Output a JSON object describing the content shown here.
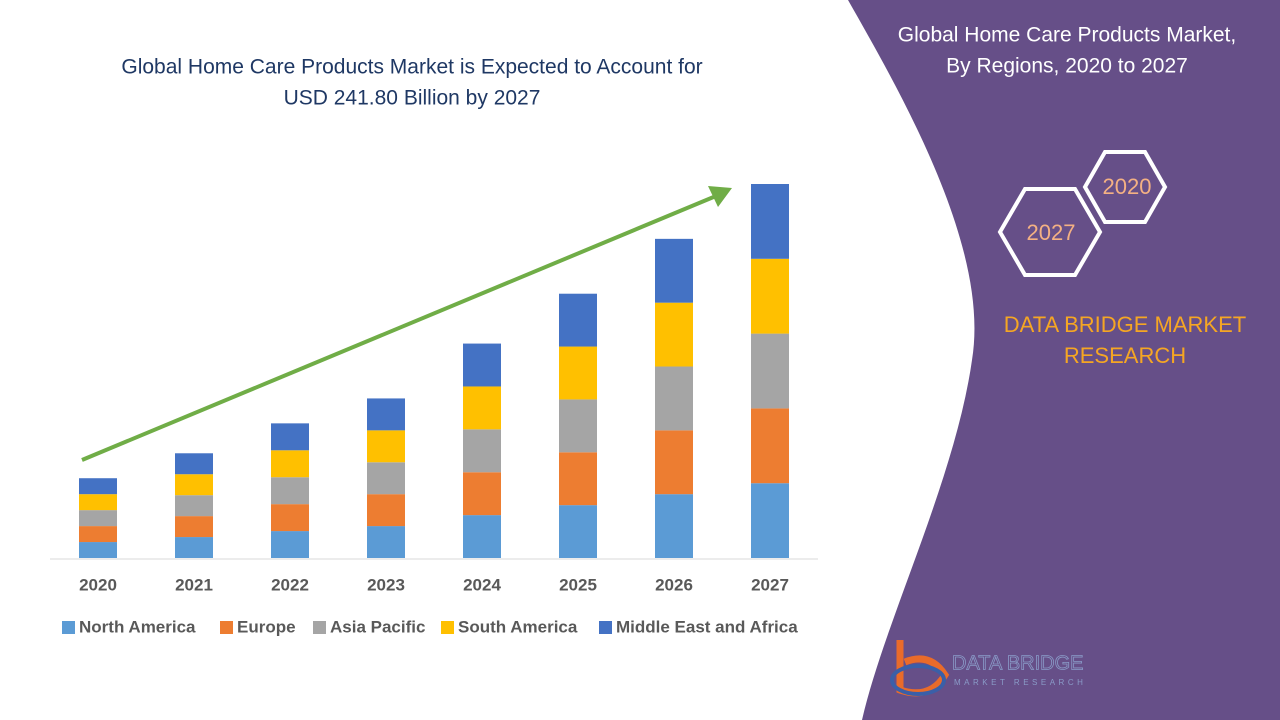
{
  "chart_data": {
    "type": "bar",
    "stacked": true,
    "title": "Global Home Care Products Market is Expected to Account  for USD 241.80 Billion by 2027",
    "title_lines": [
      "Global Home Care Products Market is Expected to Account  for",
      "USD 241.80 Billion by 2027"
    ],
    "categories": [
      "2020",
      "2021",
      "2022",
      "2023",
      "2024",
      "2025",
      "2026",
      "2027"
    ],
    "series": [
      {
        "name": "North America",
        "color": "#5b9bd5",
        "values": [
          16,
          21,
          27,
          32,
          43,
          53,
          64,
          75
        ]
      },
      {
        "name": "Europe",
        "color": "#ed7d31",
        "values": [
          16,
          21,
          27,
          32,
          43,
          53,
          64,
          75
        ]
      },
      {
        "name": "Asia Pacific",
        "color": "#a5a5a5",
        "values": [
          16,
          21,
          27,
          32,
          43,
          53,
          64,
          75
        ]
      },
      {
        "name": "South America",
        "color": "#ffc000",
        "values": [
          16,
          21,
          27,
          32,
          43,
          53,
          64,
          75
        ]
      },
      {
        "name": "Middle East and Africa",
        "color": "#4472c4",
        "values": [
          16,
          21,
          27,
          32,
          43,
          53,
          64,
          75
        ]
      }
    ],
    "legend": "bottom",
    "trend_arrow_color": "#70ad47"
  },
  "panel": {
    "title_lines": [
      "Global Home Care Products Market,",
      "By Regions, 2020 to 2027"
    ],
    "hexagons": [
      "2020",
      "2027"
    ],
    "brand_lines": [
      "DATA BRIDGE MARKET",
      "RESEARCH"
    ],
    "logo": {
      "name": "DATA BRIDGE",
      "tagline": "MARKET RESEARCH"
    }
  }
}
